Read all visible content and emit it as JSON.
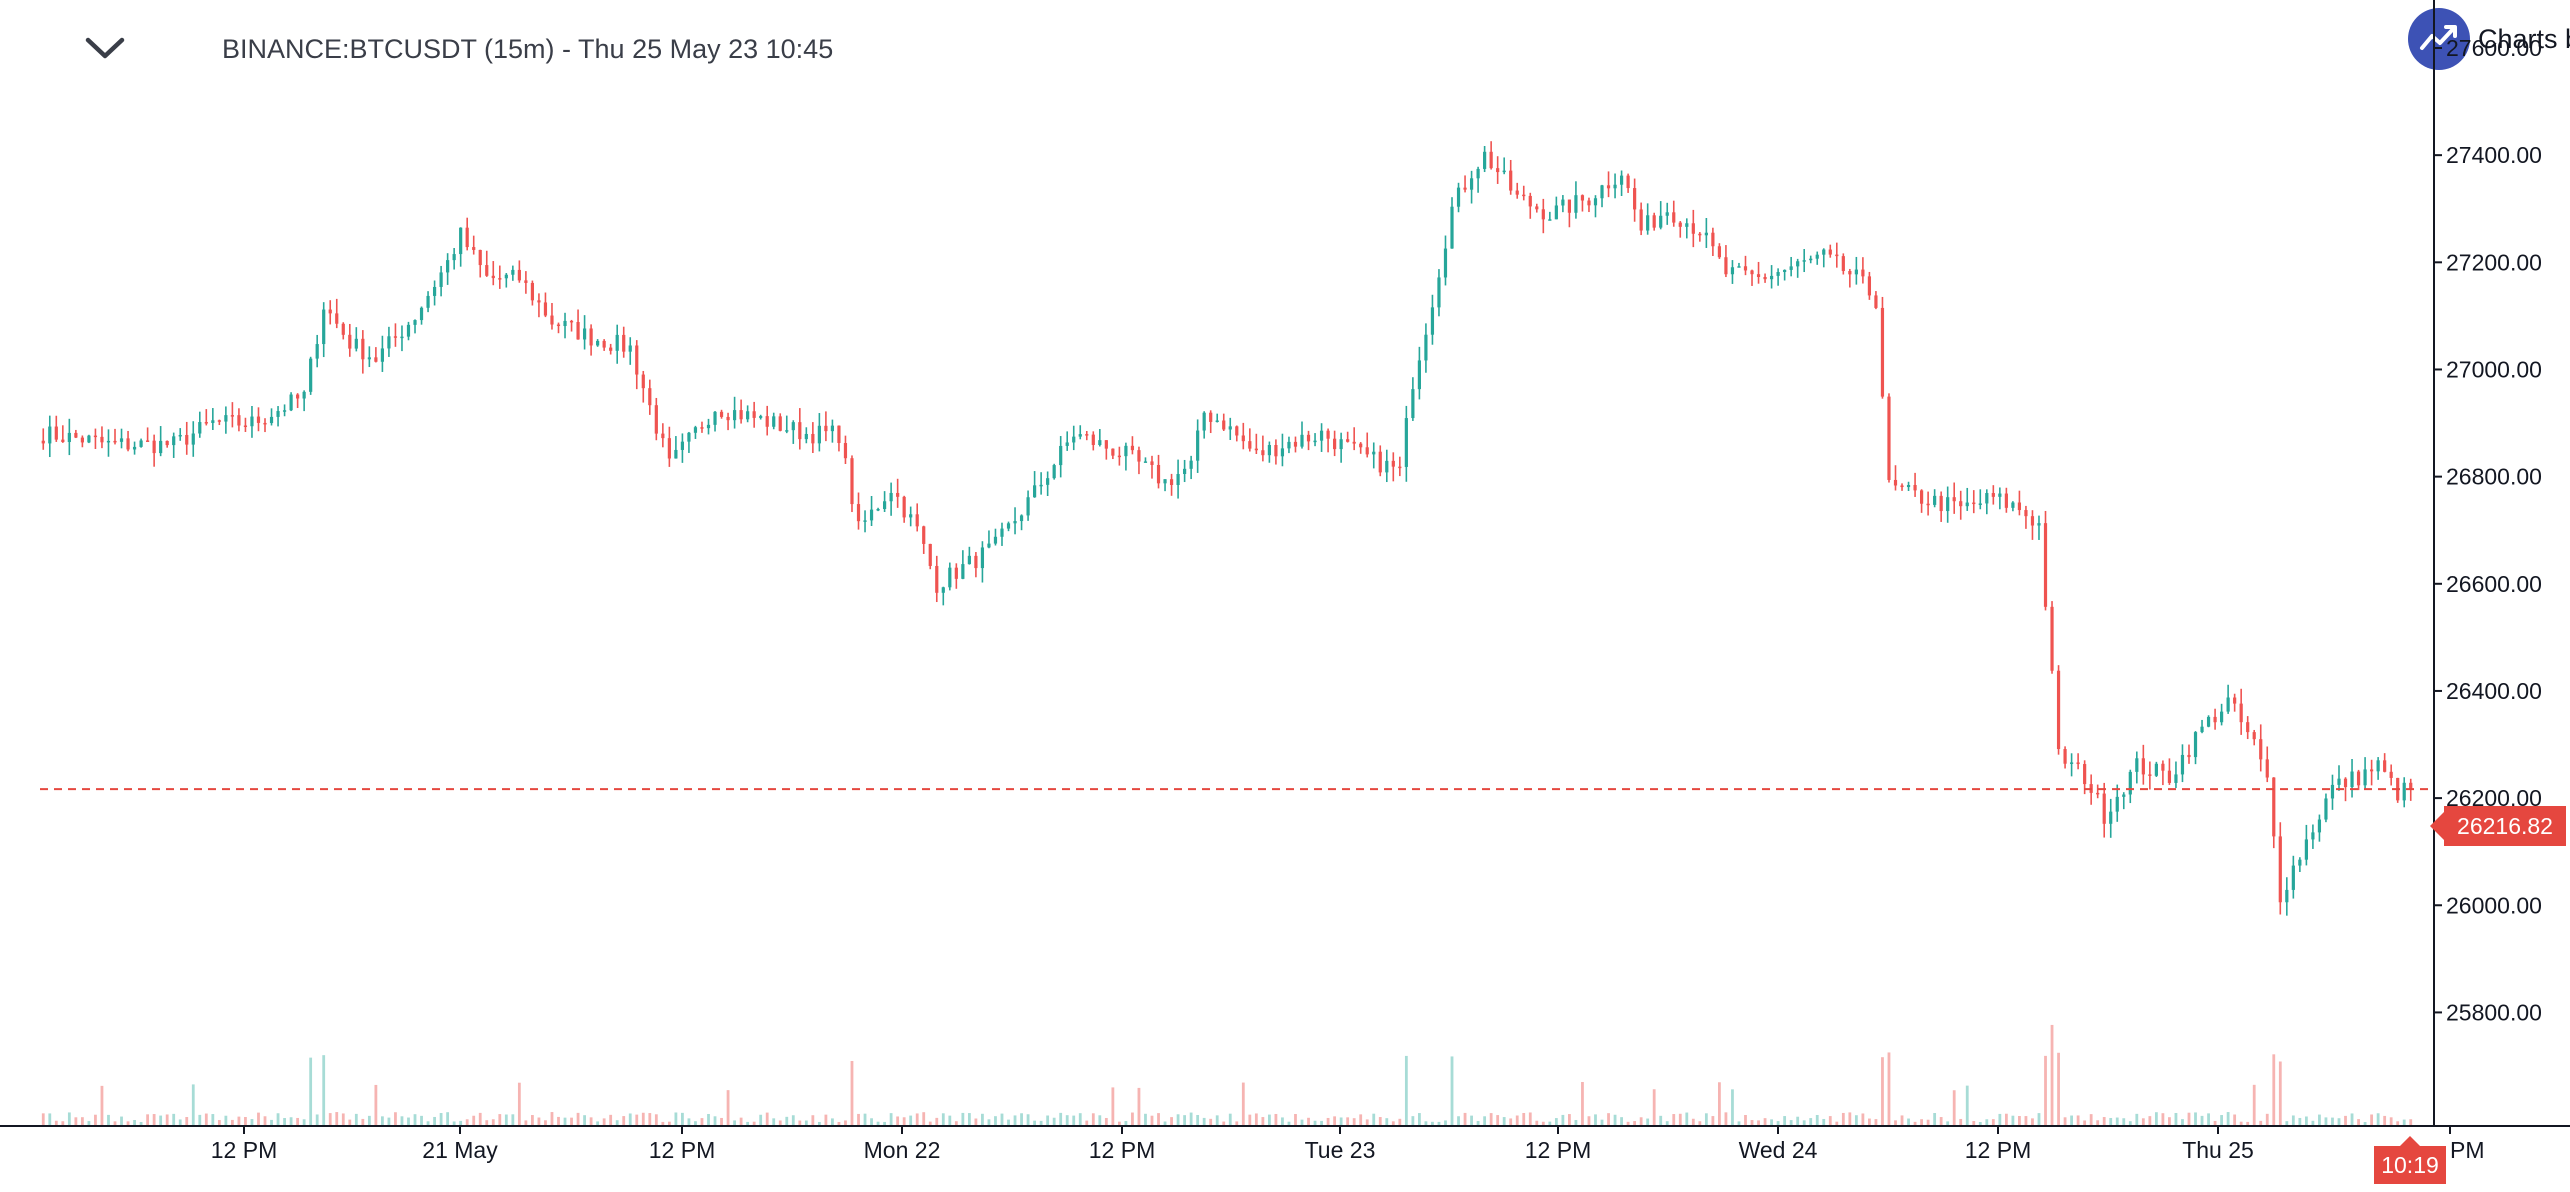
{
  "header": {
    "symbol_title": "BINANCE:BTCUSDT (15m) - Thu 25 May 23 10:45",
    "brand_label": "Charts b",
    "collapse_icon": "chevron-down-icon",
    "brand_icon": "trend-line-icon"
  },
  "colors": {
    "up": "#26a69a",
    "down": "#ef5350",
    "up_volume": "#a7dcd6",
    "down_volume": "#f6b4b2",
    "price_line": "#e5473f",
    "axis_line": "#131722"
  },
  "chart_data": {
    "type": "candlestick",
    "symbol": "BINANCE:BTCUSDT",
    "interval": "15m",
    "ylim": [
      25700,
      27600
    ],
    "y_ticks": [
      "27600.00",
      "27400.00",
      "27200.00",
      "27000.00",
      "26800.00",
      "26600.00",
      "26400.00",
      "26200.00",
      "26000.00",
      "25800.00"
    ],
    "x_ticks": [
      "12 PM",
      "21 May",
      "12 PM",
      "Mon 22",
      "12 PM",
      "Tue 23",
      "12 PM",
      "Wed 24",
      "12 PM",
      "Thu 25",
      "PM"
    ],
    "current_price": "26216.82",
    "current_time": "10:19",
    "price_anchors": [
      [
        0,
        26880
      ],
      [
        6,
        26870
      ],
      [
        10,
        26860
      ],
      [
        14,
        26860
      ],
      [
        20,
        26860
      ],
      [
        26,
        26900
      ],
      [
        32,
        26900
      ],
      [
        40,
        26950
      ],
      [
        43,
        27120
      ],
      [
        47,
        27050
      ],
      [
        51,
        27020
      ],
      [
        57,
        27100
      ],
      [
        62,
        27200
      ],
      [
        64,
        27250
      ],
      [
        68,
        27170
      ],
      [
        73,
        27170
      ],
      [
        78,
        27090
      ],
      [
        84,
        27060
      ],
      [
        90,
        27040
      ],
      [
        96,
        26820
      ],
      [
        103,
        26930
      ],
      [
        109,
        26910
      ],
      [
        117,
        26880
      ],
      [
        122,
        26880
      ],
      [
        125,
        26700
      ],
      [
        130,
        26780
      ],
      [
        134,
        26700
      ],
      [
        137,
        26600
      ],
      [
        141,
        26630
      ],
      [
        146,
        26670
      ],
      [
        152,
        26770
      ],
      [
        158,
        26880
      ],
      [
        166,
        26840
      ],
      [
        172,
        26790
      ],
      [
        176,
        26820
      ],
      [
        178,
        26920
      ],
      [
        181,
        26900
      ],
      [
        186,
        26840
      ],
      [
        190,
        26860
      ],
      [
        196,
        26880
      ],
      [
        202,
        26840
      ],
      [
        208,
        26810
      ],
      [
        210,
        26980
      ],
      [
        213,
        27130
      ],
      [
        216,
        27300
      ],
      [
        219,
        27370
      ],
      [
        221,
        27400
      ],
      [
        223,
        27370
      ],
      [
        226,
        27320
      ],
      [
        231,
        27290
      ],
      [
        237,
        27320
      ],
      [
        242,
        27370
      ],
      [
        245,
        27260
      ],
      [
        249,
        27300
      ],
      [
        254,
        27260
      ],
      [
        258,
        27180
      ],
      [
        263,
        27170
      ],
      [
        268,
        27190
      ],
      [
        273,
        27210
      ],
      [
        278,
        27170
      ],
      [
        281,
        27130
      ],
      [
        283,
        26780
      ],
      [
        288,
        26760
      ],
      [
        294,
        26740
      ],
      [
        299,
        26760
      ],
      [
        303,
        26740
      ],
      [
        306,
        26710
      ],
      [
        309,
        26280
      ],
      [
        313,
        26240
      ],
      [
        316,
        26170
      ],
      [
        321,
        26260
      ],
      [
        326,
        26240
      ],
      [
        331,
        26330
      ],
      [
        335,
        26380
      ],
      [
        339,
        26300
      ],
      [
        341,
        26230
      ],
      [
        343,
        26020
      ],
      [
        347,
        26120
      ],
      [
        351,
        26220
      ],
      [
        355,
        26240
      ],
      [
        358,
        26260
      ],
      [
        361,
        26210
      ],
      [
        363,
        26217
      ]
    ],
    "n_bars": 364
  }
}
